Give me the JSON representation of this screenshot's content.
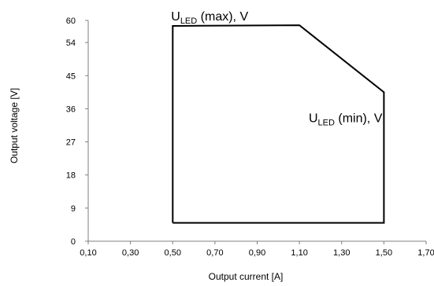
{
  "chart_data": {
    "type": "line",
    "xlabel": "Output current [A]",
    "ylabel": "Output voltage [V]",
    "xlim": [
      0.1,
      1.7
    ],
    "ylim": [
      0,
      60
    ],
    "x_ticks": [
      "0,10",
      "0,30",
      "0,50",
      "0,70",
      "0,90",
      "1,10",
      "1,30",
      "1,50",
      "1,70"
    ],
    "y_ticks": [
      "0",
      "9",
      "18",
      "27",
      "36",
      "45",
      "54",
      "60"
    ],
    "y_tick_values": [
      0,
      9,
      18,
      27,
      36,
      45,
      54,
      60
    ],
    "grid": false,
    "series": [
      {
        "x": [
          0.5,
          0.5,
          1.1,
          1.5,
          1.5,
          0.5
        ],
        "y": [
          5,
          58.5,
          58.7,
          40.5,
          5,
          5
        ]
      }
    ],
    "annotations": [
      {
        "main": "U",
        "sub": "LED",
        "rest": " (max), V",
        "x": 0.5,
        "y": 58.7
      },
      {
        "main": "U",
        "sub": "LED",
        "rest": " (min), V",
        "x": 1.5,
        "y": 40.5
      }
    ],
    "colors": {
      "axis": "#7f7f7f",
      "line": "#000000"
    }
  }
}
